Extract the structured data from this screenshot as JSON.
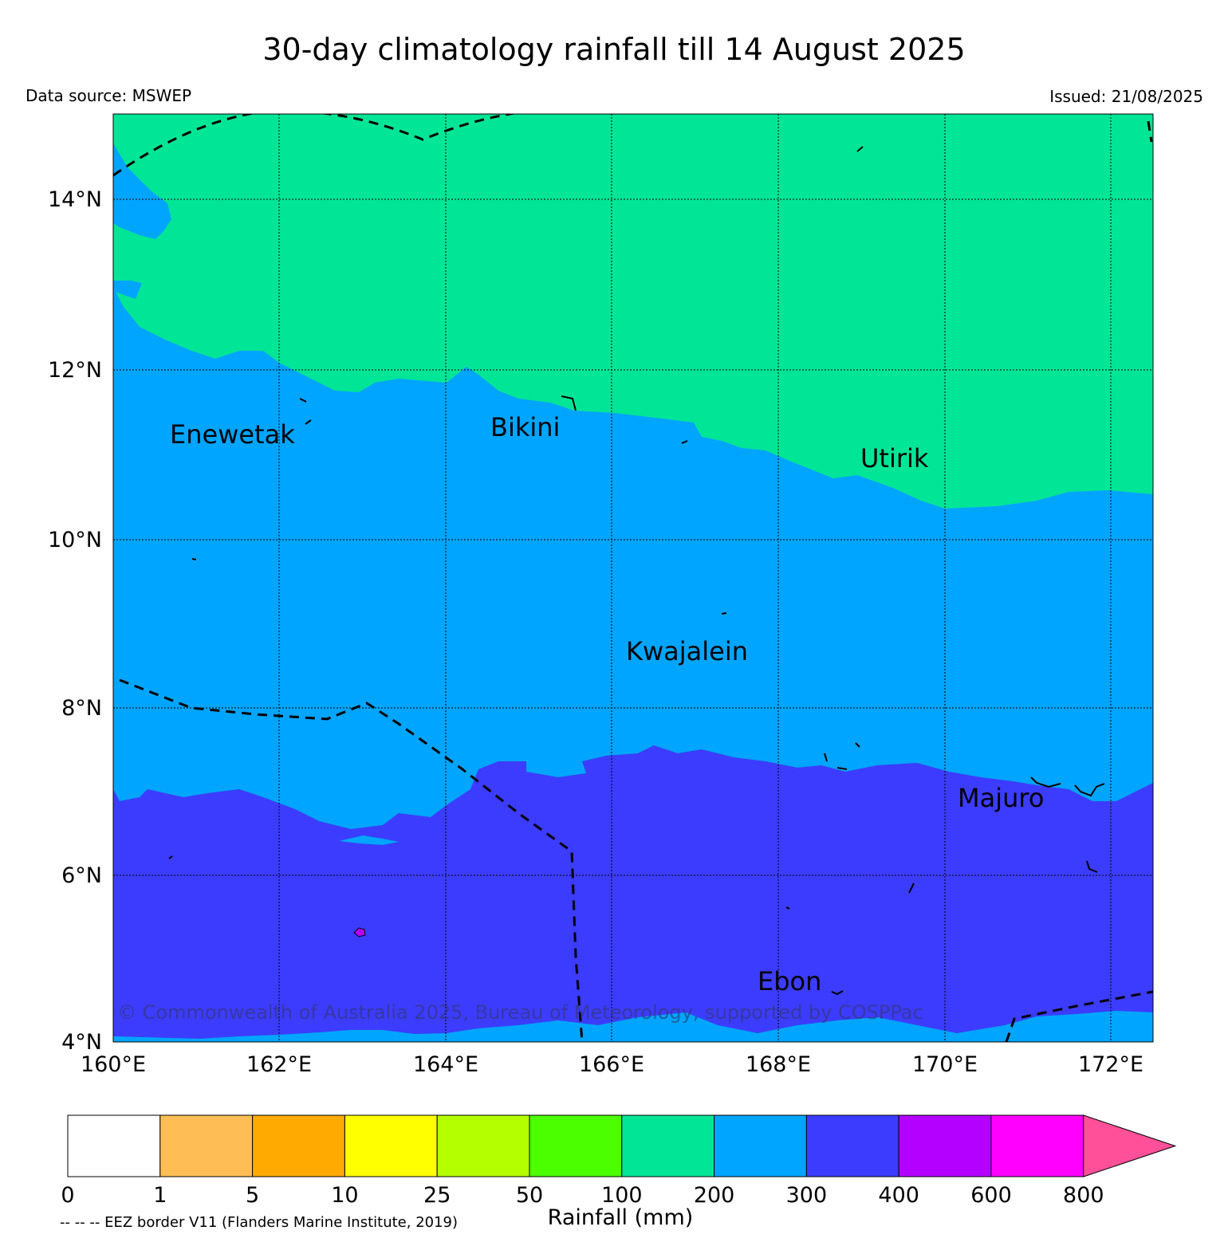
{
  "title": "30-day climatology rainfall till 14 August 2025",
  "data_source": "Data source: MSWEP",
  "issued": "Issued: 21/08/2025",
  "copyright": "© Commonwealth of Australia 2025, Bureau of Meteorology, supported by COSPPac",
  "map": {
    "lat_labels": [
      "14°N",
      "12°N",
      "10°N",
      "8°N",
      "6°N",
      "4°N"
    ],
    "lon_labels": [
      "160°E",
      "162°E",
      "164°E",
      "166°E",
      "168°E",
      "170°E",
      "172°E"
    ],
    "places": [
      "Enewetak",
      "Bikini",
      "Utirik",
      "Kwajalein",
      "Majuro",
      "Ebon"
    ],
    "region_colors": {
      "100-200": "#00e696",
      "200-300": "#00a5ff",
      "300-400": "#3c3cff",
      "400-600": "#b400ff"
    }
  },
  "colorbar": {
    "title": "Rainfall (mm)",
    "ticks": [
      "0",
      "1",
      "5",
      "10",
      "25",
      "50",
      "100",
      "200",
      "300",
      "400",
      "600",
      "800"
    ],
    "colors": [
      "#ffffff",
      "#ffbe55",
      "#ffaa00",
      "#ffff00",
      "#b4ff00",
      "#4bff00",
      "#00e696",
      "#00a5ff",
      "#3c3cff",
      "#b400ff",
      "#ff00ff",
      "#ff5099"
    ]
  },
  "eez_note": "-- -- -- EEZ border V11 (Flanders Marine Institute, 2019)"
}
